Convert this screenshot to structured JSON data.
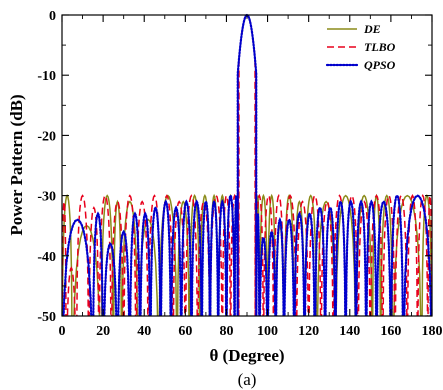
{
  "chart_data": {
    "type": "line",
    "xlabel": "θ (Degree)",
    "ylabel": "Power Pattern (dB)",
    "caption": "(a)",
    "xlim": [
      0,
      180
    ],
    "ylim": [
      -50,
      0
    ],
    "x_ticks": [
      "0",
      "20",
      "40",
      "60",
      "80",
      "100",
      "120",
      "140",
      "160",
      "180"
    ],
    "y_ticks": [
      "0",
      "-10",
      "-20",
      "-30",
      "-40",
      "-50"
    ],
    "grid": false,
    "legend_position": "top-right",
    "series": [
      {
        "name": "DE",
        "color": "#8b8b1a",
        "style": "solid",
        "nulls": [
          5,
          19,
          25,
          29,
          37,
          47,
          56,
          62,
          67,
          72,
          76,
          80,
          84,
          96,
          100,
          104,
          108,
          113,
          118,
          124,
          133,
          143,
          151,
          155,
          161,
          175
        ],
        "sidelobe_peaks": [
          -30,
          -35,
          -30,
          -31,
          -31,
          -34,
          -30,
          -31,
          -30,
          -30,
          -30,
          -30,
          -30,
          -30,
          -30,
          -30,
          -30,
          -30,
          -31,
          -30,
          -31,
          -30,
          -35,
          -30,
          -30,
          -30
        ]
      },
      {
        "name": "TLBO",
        "color": "#e8001c",
        "style": "dashed",
        "nulls": [
          2,
          7,
          13,
          18,
          24,
          30,
          36,
          42,
          48,
          54,
          60,
          66,
          72,
          78,
          82,
          86,
          94,
          98,
          103,
          108,
          114,
          120,
          126,
          132,
          138,
          144,
          150,
          156,
          162,
          168,
          173,
          178
        ],
        "sidelobe_peaks": [
          -31,
          -42,
          -30,
          -32,
          -30,
          -31,
          -30,
          -31,
          -30,
          -30,
          -31,
          -30,
          -31,
          -30,
          -30,
          -30,
          -30,
          -30,
          -30,
          -30,
          -30,
          -31,
          -30,
          -30,
          -31,
          -30,
          -31,
          -30,
          -30,
          -30,
          -30,
          -30
        ]
      },
      {
        "name": "QPSO",
        "color": "#0000cc",
        "style": "dotted",
        "nulls": [
          15,
          20,
          27,
          33,
          38,
          43,
          48,
          53,
          58,
          63,
          68,
          72,
          76,
          80,
          84,
          96,
          100,
          104,
          108,
          113,
          118,
          123,
          128,
          133,
          138,
          143,
          148,
          153,
          160,
          166
        ],
        "sidelobe_peaks": [
          -34,
          -33,
          -38,
          -36,
          -33,
          -33,
          -32,
          -31,
          -32,
          -31,
          -31,
          -31,
          -31,
          -31,
          -30,
          -30,
          -31,
          -31,
          -31,
          -31,
          -31,
          -32,
          -32,
          -33,
          -33,
          -34,
          -34,
          -36,
          -37,
          -33
        ]
      }
    ]
  }
}
